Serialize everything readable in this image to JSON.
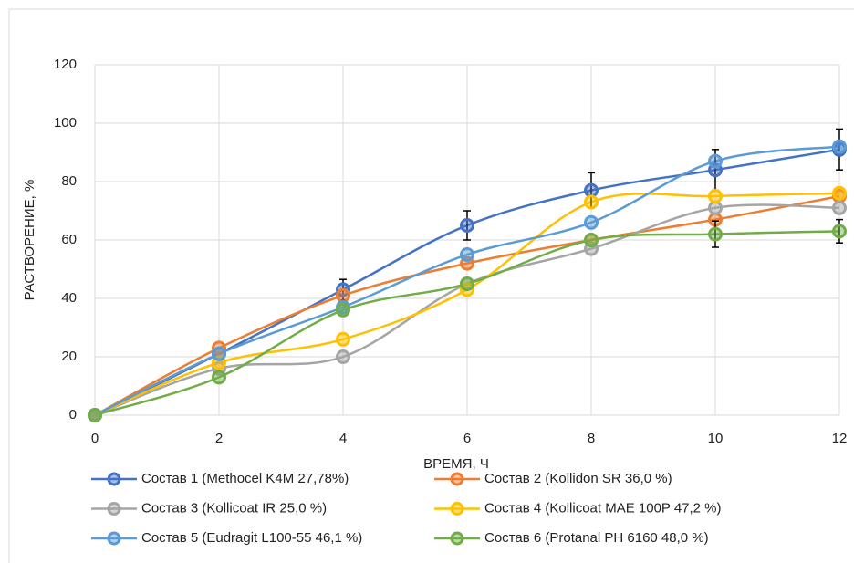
{
  "chart_data": {
    "type": "line",
    "xlabel": "ВРЕМЯ, Ч",
    "ylabel": "РАСТВОРЕНИЕ, %",
    "x": [
      0,
      2,
      4,
      6,
      8,
      10,
      12
    ],
    "xlim": [
      0,
      12
    ],
    "xticks": [
      0,
      2,
      4,
      6,
      8,
      10,
      12
    ],
    "ylim": [
      0,
      120
    ],
    "yticks": [
      0,
      20,
      40,
      60,
      80,
      100,
      120
    ],
    "grid": true,
    "legend": "bottom",
    "series": [
      {
        "name": "Состав 1 (Methocel K4M 27,78%)",
        "color": "#4472c4",
        "values": [
          0,
          21,
          43,
          65,
          77,
          84,
          91
        ],
        "errors": [
          null,
          null,
          3.5,
          5,
          6,
          7,
          7
        ]
      },
      {
        "name": "Состав 2 (Kollidon SR 36,0 %)",
        "color": "#ed7d31",
        "values": [
          0,
          23,
          41,
          52,
          60,
          67,
          75
        ]
      },
      {
        "name": "Состав 3 (Kollicoat IR 25,0 %)",
        "color": "#a5a5a5",
        "values": [
          0,
          16,
          20,
          45,
          57,
          71,
          71
        ]
      },
      {
        "name": "Состав 4 (Kollicoat MAE 100P 47,2 %)",
        "color": "#ffc000",
        "values": [
          0,
          18,
          26,
          43,
          73,
          75,
          76
        ]
      },
      {
        "name": "Состав 5 (Eudragit L100-55 46,1 %)",
        "color": "#5b9bd5",
        "values": [
          0,
          21,
          37,
          55,
          66,
          87,
          92
        ]
      },
      {
        "name": "Состав 6 (Protanal PH 6160 48,0 %)",
        "color": "#70ad47",
        "values": [
          0,
          13,
          36,
          45,
          60,
          62,
          63
        ],
        "errors": [
          null,
          null,
          null,
          null,
          null,
          4.5,
          4
        ]
      }
    ]
  }
}
